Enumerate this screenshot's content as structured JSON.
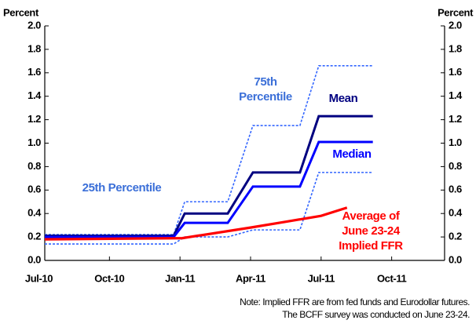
{
  "chart_data": {
    "type": "line",
    "y_axis_label": "Percent",
    "y2_axis_label": "Percent",
    "xlim": [
      0.25,
      17.25
    ],
    "xticks": [
      {
        "value": 0,
        "label": "Jul-10"
      },
      {
        "value": 3,
        "label": "Oct-10"
      },
      {
        "value": 6,
        "label": "Jan-11"
      },
      {
        "value": 9,
        "label": "Apr-11"
      },
      {
        "value": 12,
        "label": "Jul-11"
      },
      {
        "value": 15,
        "label": "Oct-11"
      }
    ],
    "ylim": [
      0,
      2
    ],
    "yticks": [
      {
        "value": 0,
        "label": "0.0"
      },
      {
        "value": 0.2,
        "label": "0.2"
      },
      {
        "value": 0.4,
        "label": "0.4"
      },
      {
        "value": 0.6,
        "label": "0.6"
      },
      {
        "value": 0.8,
        "label": "0.8"
      },
      {
        "value": 1,
        "label": "1.0"
      },
      {
        "value": 1.2,
        "label": "1.2"
      },
      {
        "value": 1.4,
        "label": "1.4"
      },
      {
        "value": 1.6,
        "label": "1.6"
      },
      {
        "value": 1.8,
        "label": "1.8"
      },
      {
        "value": 2,
        "label": "2.0"
      }
    ],
    "y2lim": [
      0,
      2
    ],
    "y2ticks": [
      {
        "value": 0,
        "label": "0.0"
      },
      {
        "value": 0.2,
        "label": "0.2"
      },
      {
        "value": 0.4,
        "label": "0.4"
      },
      {
        "value": 0.6,
        "label": "0.6"
      },
      {
        "value": 0.8,
        "label": "0.8"
      },
      {
        "value": 1,
        "label": "1.0"
      },
      {
        "value": 1.2,
        "label": "1.2"
      },
      {
        "value": 1.4,
        "label": "1.4"
      },
      {
        "value": 1.6,
        "label": "1.6"
      },
      {
        "value": 1.8,
        "label": "1.8"
      },
      {
        "value": 2,
        "label": "2.0"
      }
    ],
    "grid": false,
    "series": [
      {
        "name": "75th Percentile",
        "color": "#3366ff",
        "dashed": true,
        "x": [
          0.25,
          5.73,
          6.2,
          8.03,
          9.1,
          11.1,
          11.9,
          14.2
        ],
        "values": [
          0.22,
          0.22,
          0.5,
          0.5,
          1.15,
          1.15,
          1.66,
          1.66
        ]
      },
      {
        "name": "Mean",
        "color": "#000080",
        "dashed": false,
        "x": [
          0.25,
          5.73,
          6.2,
          8.03,
          9.1,
          11.1,
          11.9,
          14.2
        ],
        "values": [
          0.21,
          0.21,
          0.4,
          0.4,
          0.75,
          0.75,
          1.23,
          1.23
        ]
      },
      {
        "name": "Median",
        "color": "#0000ff",
        "dashed": false,
        "x": [
          0.25,
          5.73,
          6.2,
          8.03,
          9.1,
          11.1,
          11.9,
          14.2
        ],
        "values": [
          0.2,
          0.2,
          0.32,
          0.32,
          0.63,
          0.63,
          1.01,
          1.01
        ]
      },
      {
        "name": "25th Percentile",
        "color": "#3366ff",
        "dashed": true,
        "x": [
          0.25,
          5.73,
          6.2,
          8.03,
          9.1,
          11.1,
          11.9,
          14.2
        ],
        "values": [
          0.14,
          0.14,
          0.2,
          0.2,
          0.26,
          0.26,
          0.75,
          0.75
        ]
      },
      {
        "name": "Average of June 23-24 Implied FFR",
        "color": "#ff0000",
        "dashed": false,
        "x": [
          0.25,
          6.1,
          9,
          10.5,
          12,
          13.1
        ],
        "values": [
          0.18,
          0.19,
          0.28,
          0.33,
          0.38,
          0.45
        ]
      }
    ],
    "notes": [
      "Note: Implied FFR are from fed funds and Eurodollar futures.",
      "The BCFF survey was conducted on June 23-24."
    ]
  }
}
